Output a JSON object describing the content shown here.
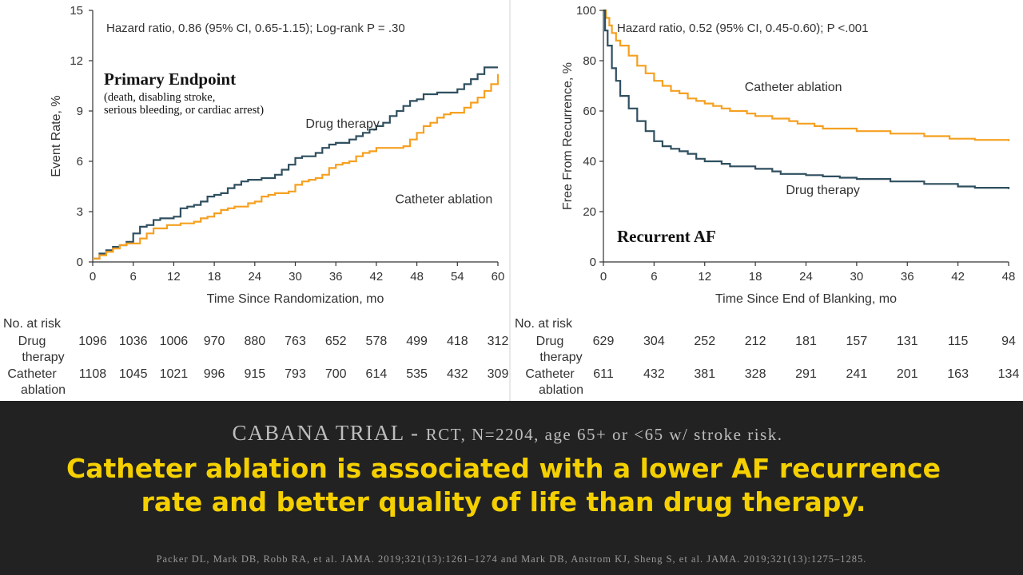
{
  "chart_data": [
    {
      "type": "line",
      "panel": "primary-endpoint",
      "annotation": "Hazard ratio, 0.86 (95% CI, 0.65-1.15); Log-rank P = .30",
      "title": "Primary Endpoint",
      "subtitle_lines": [
        "(death, disabling stroke,",
        "serious bleeding, or cardiac arrest)"
      ],
      "xlabel": "Time Since Randomization, mo",
      "ylabel": "Event Rate, %",
      "xlim": [
        0,
        60
      ],
      "ylim": [
        0,
        15
      ],
      "xticks": [
        0,
        6,
        12,
        18,
        24,
        30,
        36,
        42,
        48,
        54,
        60
      ],
      "yticks": [
        0,
        3,
        6,
        9,
        12,
        15
      ],
      "grid": false,
      "series": [
        {
          "name": "Drug therapy",
          "color": "#2f4f5f",
          "points": [
            [
              0,
              0.2
            ],
            [
              1,
              0.5
            ],
            [
              2,
              0.7
            ],
            [
              3,
              0.9
            ],
            [
              4,
              1.0
            ],
            [
              5,
              1.2
            ],
            [
              6,
              1.7
            ],
            [
              7,
              2.1
            ],
            [
              8,
              2.2
            ],
            [
              9,
              2.5
            ],
            [
              10,
              2.6
            ],
            [
              11,
              2.6
            ],
            [
              12,
              2.7
            ],
            [
              13,
              3.2
            ],
            [
              14,
              3.3
            ],
            [
              15,
              3.4
            ],
            [
              16,
              3.6
            ],
            [
              17,
              3.9
            ],
            [
              18,
              4.0
            ],
            [
              19,
              4.1
            ],
            [
              20,
              4.4
            ],
            [
              21,
              4.6
            ],
            [
              22,
              4.8
            ],
            [
              23,
              4.9
            ],
            [
              24,
              4.9
            ],
            [
              25,
              5.0
            ],
            [
              26,
              5.0
            ],
            [
              27,
              5.2
            ],
            [
              28,
              5.5
            ],
            [
              29,
              5.8
            ],
            [
              30,
              6.2
            ],
            [
              31,
              6.3
            ],
            [
              32,
              6.3
            ],
            [
              33,
              6.5
            ],
            [
              34,
              6.8
            ],
            [
              35,
              7.0
            ],
            [
              36,
              7.1
            ],
            [
              37,
              7.1
            ],
            [
              38,
              7.3
            ],
            [
              39,
              7.5
            ],
            [
              40,
              7.7
            ],
            [
              41,
              7.9
            ],
            [
              42,
              8.1
            ],
            [
              43,
              8.3
            ],
            [
              44,
              8.7
            ],
            [
              45,
              9.0
            ],
            [
              46,
              9.3
            ],
            [
              47,
              9.6
            ],
            [
              48,
              9.7
            ],
            [
              49,
              10.0
            ],
            [
              50,
              10.0
            ],
            [
              51,
              10.1
            ],
            [
              52,
              10.1
            ],
            [
              53,
              10.1
            ],
            [
              54,
              10.3
            ],
            [
              55,
              10.6
            ],
            [
              56,
              10.9
            ],
            [
              57,
              11.2
            ],
            [
              58,
              11.6
            ],
            [
              59,
              11.6
            ],
            [
              60,
              11.6
            ]
          ]
        },
        {
          "name": "Catheter ablation",
          "color": "#f5a020",
          "points": [
            [
              0,
              0.2
            ],
            [
              1,
              0.4
            ],
            [
              2,
              0.6
            ],
            [
              3,
              0.8
            ],
            [
              4,
              1.0
            ],
            [
              5,
              1.1
            ],
            [
              6,
              1.1
            ],
            [
              7,
              1.4
            ],
            [
              8,
              1.7
            ],
            [
              9,
              2.0
            ],
            [
              10,
              2.0
            ],
            [
              11,
              2.2
            ],
            [
              12,
              2.2
            ],
            [
              13,
              2.3
            ],
            [
              14,
              2.3
            ],
            [
              15,
              2.4
            ],
            [
              16,
              2.6
            ],
            [
              17,
              2.7
            ],
            [
              18,
              2.9
            ],
            [
              19,
              3.1
            ],
            [
              20,
              3.2
            ],
            [
              21,
              3.3
            ],
            [
              22,
              3.3
            ],
            [
              23,
              3.5
            ],
            [
              24,
              3.6
            ],
            [
              25,
              3.9
            ],
            [
              26,
              4.0
            ],
            [
              27,
              4.1
            ],
            [
              28,
              4.1
            ],
            [
              29,
              4.2
            ],
            [
              30,
              4.6
            ],
            [
              31,
              4.8
            ],
            [
              32,
              4.9
            ],
            [
              33,
              5.0
            ],
            [
              34,
              5.2
            ],
            [
              35,
              5.6
            ],
            [
              36,
              5.8
            ],
            [
              37,
              5.9
            ],
            [
              38,
              6.0
            ],
            [
              39,
              6.3
            ],
            [
              40,
              6.5
            ],
            [
              41,
              6.6
            ],
            [
              42,
              6.8
            ],
            [
              43,
              6.8
            ],
            [
              44,
              6.8
            ],
            [
              45,
              6.8
            ],
            [
              46,
              6.9
            ],
            [
              47,
              7.3
            ],
            [
              48,
              7.7
            ],
            [
              49,
              8.1
            ],
            [
              50,
              8.3
            ],
            [
              51,
              8.6
            ],
            [
              52,
              8.8
            ],
            [
              53,
              8.9
            ],
            [
              54,
              8.9
            ],
            [
              55,
              9.2
            ],
            [
              56,
              9.5
            ],
            [
              57,
              9.8
            ],
            [
              58,
              10.2
            ],
            [
              59,
              10.6
            ],
            [
              60,
              11.2
            ]
          ]
        }
      ],
      "series_labels": [
        {
          "text": "Drug therapy",
          "x": 37,
          "y": 8.0
        },
        {
          "text": "Catheter ablation",
          "x": 52,
          "y": 3.5
        }
      ],
      "at_risk": {
        "header": "No. at risk",
        "rows": [
          {
            "label_lines": [
              "Drug",
              "therapy"
            ],
            "values": [
              "1096",
              "1036",
              "1006",
              "970",
              "880",
              "763",
              "652",
              "578",
              "499",
              "418",
              "312"
            ]
          },
          {
            "label_lines": [
              "Catheter",
              "ablation"
            ],
            "values": [
              "1108",
              "1045",
              "1021",
              "996",
              "915",
              "793",
              "700",
              "614",
              "535",
              "432",
              "309"
            ]
          }
        ]
      }
    },
    {
      "type": "line",
      "panel": "recurrent-af",
      "annotation": "Hazard ratio, 0.52 (95% CI, 0.45-0.60); P <.001",
      "title": "Recurrent AF",
      "xlabel": "Time Since End of Blanking, mo",
      "ylabel": "Free From Recurrence, %",
      "xlim": [
        0,
        48
      ],
      "ylim": [
        0,
        100
      ],
      "xticks": [
        0,
        6,
        12,
        18,
        24,
        30,
        36,
        42,
        48
      ],
      "yticks": [
        0,
        20,
        40,
        60,
        80,
        100
      ],
      "grid": false,
      "series": [
        {
          "name": "Catheter ablation",
          "color": "#f5a020",
          "points": [
            [
              0,
              100
            ],
            [
              0.3,
              97
            ],
            [
              0.7,
              94
            ],
            [
              1,
              91
            ],
            [
              1.5,
              88
            ],
            [
              2,
              86
            ],
            [
              3,
              82
            ],
            [
              4,
              78
            ],
            [
              5,
              75
            ],
            [
              6,
              72
            ],
            [
              7,
              70
            ],
            [
              8,
              68
            ],
            [
              9,
              67
            ],
            [
              10,
              65
            ],
            [
              11,
              64
            ],
            [
              12,
              63
            ],
            [
              13,
              62
            ],
            [
              14,
              61
            ],
            [
              15,
              60
            ],
            [
              16,
              60
            ],
            [
              17,
              59
            ],
            [
              18,
              58
            ],
            [
              19,
              58
            ],
            [
              20,
              57
            ],
            [
              21,
              57
            ],
            [
              22,
              56
            ],
            [
              23,
              55
            ],
            [
              24,
              55
            ],
            [
              25,
              54
            ],
            [
              26,
              53
            ],
            [
              27,
              53
            ],
            [
              28,
              53
            ],
            [
              29,
              53
            ],
            [
              30,
              52
            ],
            [
              32,
              52
            ],
            [
              34,
              51
            ],
            [
              36,
              51
            ],
            [
              37,
              51
            ],
            [
              38,
              50
            ],
            [
              40,
              50
            ],
            [
              41,
              49
            ],
            [
              42,
              49
            ],
            [
              44,
              48.5
            ],
            [
              46,
              48.5
            ],
            [
              48,
              48
            ]
          ]
        },
        {
          "name": "Drug therapy",
          "color": "#2f4f5f",
          "points": [
            [
              0,
              100
            ],
            [
              0.2,
              92
            ],
            [
              0.5,
              86
            ],
            [
              1,
              77
            ],
            [
              1.5,
              72
            ],
            [
              2,
              66
            ],
            [
              3,
              61
            ],
            [
              4,
              56
            ],
            [
              5,
              52
            ],
            [
              6,
              48
            ],
            [
              7,
              46
            ],
            [
              8,
              45
            ],
            [
              9,
              44
            ],
            [
              10,
              43
            ],
            [
              11,
              41
            ],
            [
              12,
              40
            ],
            [
              13,
              40
            ],
            [
              14,
              39
            ],
            [
              15,
              38
            ],
            [
              16,
              38
            ],
            [
              17,
              38
            ],
            [
              18,
              37
            ],
            [
              19,
              37
            ],
            [
              20,
              36
            ],
            [
              21,
              35
            ],
            [
              22,
              35
            ],
            [
              24,
              34.5
            ],
            [
              26,
              34
            ],
            [
              28,
              33.5
            ],
            [
              30,
              33
            ],
            [
              32,
              33
            ],
            [
              34,
              32
            ],
            [
              36,
              32
            ],
            [
              38,
              31
            ],
            [
              40,
              31
            ],
            [
              42,
              30
            ],
            [
              44,
              29.5
            ],
            [
              46,
              29.5
            ],
            [
              48,
              29
            ]
          ]
        }
      ],
      "series_labels": [
        {
          "text": "Catheter ablation",
          "x": 22.5,
          "y": 68
        },
        {
          "text": "Drug therapy",
          "x": 26,
          "y": 27
        }
      ],
      "at_risk": {
        "header": "No. at risk",
        "rows": [
          {
            "label_lines": [
              "Drug",
              "therapy"
            ],
            "values": [
              "629",
              "304",
              "252",
              "212",
              "181",
              "157",
              "131",
              "115",
              "94"
            ]
          },
          {
            "label_lines": [
              "Catheter",
              "ablation"
            ],
            "values": [
              "611",
              "432",
              "381",
              "328",
              "291",
              "241",
              "201",
              "163",
              "134"
            ]
          }
        ]
      }
    }
  ],
  "banner": {
    "subtitle_lead": "CABANA TRIAL - ",
    "subtitle_rest": "RCT, N=2204, age 65+ or <65 w/ stroke risk.",
    "main_line1": "Catheter ablation is associated with a lower AF recurrence",
    "main_line2": "rate and better quality of life than drug therapy.",
    "citation": "Packer DL, Mark DB, Robb RA, et al. JAMA. 2019;321(13):1261–1274 and Mark DB, Anstrom KJ, Sheng S, et al. JAMA. 2019;321(13):1275–1285."
  }
}
